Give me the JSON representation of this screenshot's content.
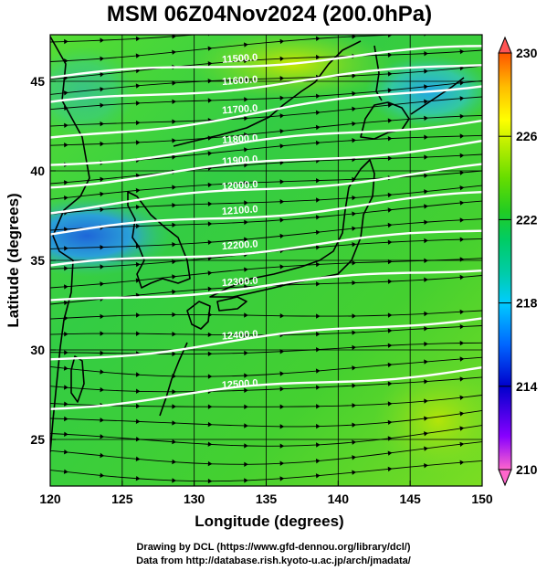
{
  "title": "MSM 06Z04Nov2024 (200.0hPa)",
  "map": {
    "xlabel": "Longitude (degrees)",
    "ylabel": "Latitude  (degrees)",
    "lon_range": [
      120,
      150
    ],
    "lat_range": [
      22.4,
      47.6
    ],
    "lon_ticks": [
      "120",
      "125",
      "130",
      "135",
      "140",
      "145",
      "150"
    ],
    "lat_ticks": [
      "25",
      "30",
      "35",
      "40",
      "45"
    ],
    "contours": [
      {
        "label": "11500.0",
        "lat_west": 45.2,
        "lat_east": 46.9
      },
      {
        "label": "11600.0",
        "lat_west": 43.7,
        "lat_east": 46.0
      },
      {
        "label": "11700.0",
        "lat_west": 41.7,
        "lat_east": 44.9
      },
      {
        "label": "11800.0",
        "lat_west": 40.3,
        "lat_east": 42.9
      },
      {
        "label": "11900.0",
        "lat_west": 39.2,
        "lat_east": 41.6
      },
      {
        "label": "12000.0",
        "lat_west": 37.8,
        "lat_east": 40.2
      },
      {
        "label": "12100.0",
        "lat_west": 36.5,
        "lat_east": 38.7
      },
      {
        "label": "12200.0",
        "lat_west": 34.6,
        "lat_east": 36.7
      },
      {
        "label": "12300.0",
        "lat_west": 32.6,
        "lat_east": 34.6
      },
      {
        "label": "12400.0",
        "lat_west": 29.4,
        "lat_east": 31.9
      },
      {
        "label": "12500.0",
        "lat_west": 26.8,
        "lat_east": 29.0
      }
    ]
  },
  "colorbar": {
    "min": 210,
    "max": 230,
    "tick_labels": [
      "230",
      "226",
      "222",
      "218",
      "214",
      "210"
    ],
    "colors": [
      "#ff66cc",
      "#8800ff",
      "#0000cc",
      "#0066ff",
      "#00ccff",
      "#00ccaa",
      "#00cc66",
      "#22cc22",
      "#66dd00",
      "#bbee00",
      "#ffff00",
      "#ffbb00",
      "#ff5500"
    ]
  },
  "footer": {
    "line1": "Drawing by DCL (https://www.gfd-dennou.org/library/dcl/)",
    "line2": "Data from http://database.rish.kyoto-u.ac.jp/arch/jmadata/"
  }
}
